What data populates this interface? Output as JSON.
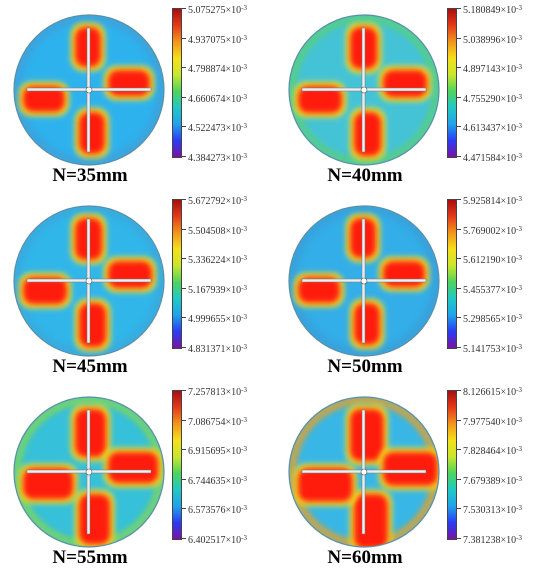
{
  "colormap": [
    "#7a12a6",
    "#2a3cf5",
    "#1fa3ea",
    "#1fc9c6",
    "#4ed45c",
    "#c9e62e",
    "#f5e01a",
    "#f2951a",
    "#e53a1a",
    "#a80d0d"
  ],
  "tick_suffix": "×10",
  "tick_exponent": "-3",
  "panels": [
    {
      "caption": "N=35mm",
      "ticks": [
        "5.075275",
        "4.937075",
        "4.798874",
        "4.660674",
        "4.522473",
        "4.384273"
      ],
      "background": "#2eb2ee",
      "rim": "#3fa0d8",
      "blobs": "#ff1a10"
    },
    {
      "caption": "N=40mm",
      "ticks": [
        "5.180849",
        "5.038996",
        "4.897143",
        "4.755290",
        "4.613437",
        "4.471584"
      ],
      "background": "#45c3d6",
      "rim": "#59cf7a",
      "blobs": "#ff1a10"
    },
    {
      "caption": "N=45mm",
      "ticks": [
        "5.672792",
        "5.504508",
        "5.336224",
        "5.167939",
        "4.999655",
        "4.831371"
      ],
      "background": "#31b6ea",
      "rim": "#3aa9dc",
      "blobs": "#ff1a10"
    },
    {
      "caption": "N=50mm",
      "ticks": [
        "5.925814",
        "5.769002",
        "5.612190",
        "5.455377",
        "5.298565",
        "5.141753"
      ],
      "background": "#33aee8",
      "rim": "#3b9fd8",
      "blobs": "#ff1a10"
    },
    {
      "caption": "N=55mm",
      "ticks": [
        "7.257813",
        "7.086754",
        "6.915695",
        "6.744635",
        "6.573576",
        "6.402517"
      ],
      "background": "#37c0d9",
      "rim": "#7fd65a",
      "blobs": "#ff1a10"
    },
    {
      "caption": "N=60mm",
      "ticks": [
        "8.126615",
        "7.977540",
        "7.828464",
        "7.679389",
        "7.530313",
        "7.381238"
      ],
      "background": "#38b7e6",
      "rim": "#e8a028",
      "blobs": "#ff1a10"
    }
  ]
}
